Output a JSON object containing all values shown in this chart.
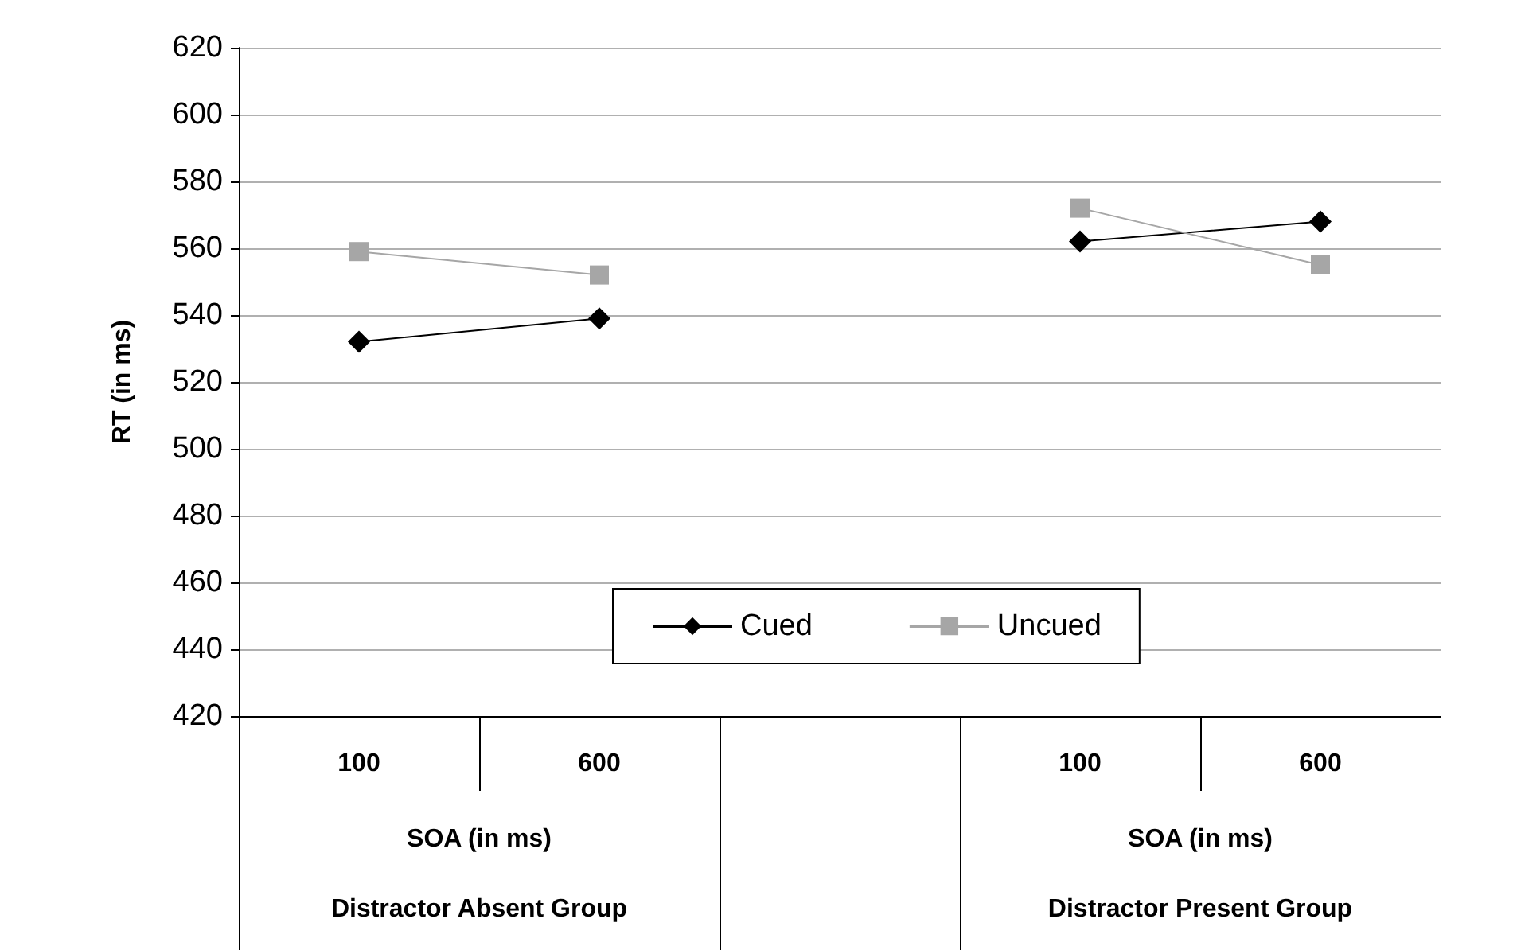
{
  "chart_data": {
    "type": "line",
    "ylabel": "RT (in ms)",
    "categories": [
      "100",
      "600",
      null,
      "100",
      "600"
    ],
    "series": [
      {
        "name": "Cued",
        "color": "#000000",
        "marker": "diamond",
        "values": [
          532,
          539,
          null,
          562,
          568
        ]
      },
      {
        "name": "Uncued",
        "color": "#a6a6a6",
        "marker": "square",
        "values": [
          559,
          552,
          null,
          572,
          555
        ]
      }
    ],
    "ylim": [
      420,
      620
    ],
    "yticks": [
      420,
      440,
      460,
      480,
      500,
      520,
      540,
      560,
      580,
      600,
      620
    ],
    "grid": "y",
    "legend": "bottom",
    "annotations": [
      "SOA (in ms)",
      "SOA (in ms)",
      "Distractor Absent Group",
      "Distractor Present Group"
    ]
  }
}
